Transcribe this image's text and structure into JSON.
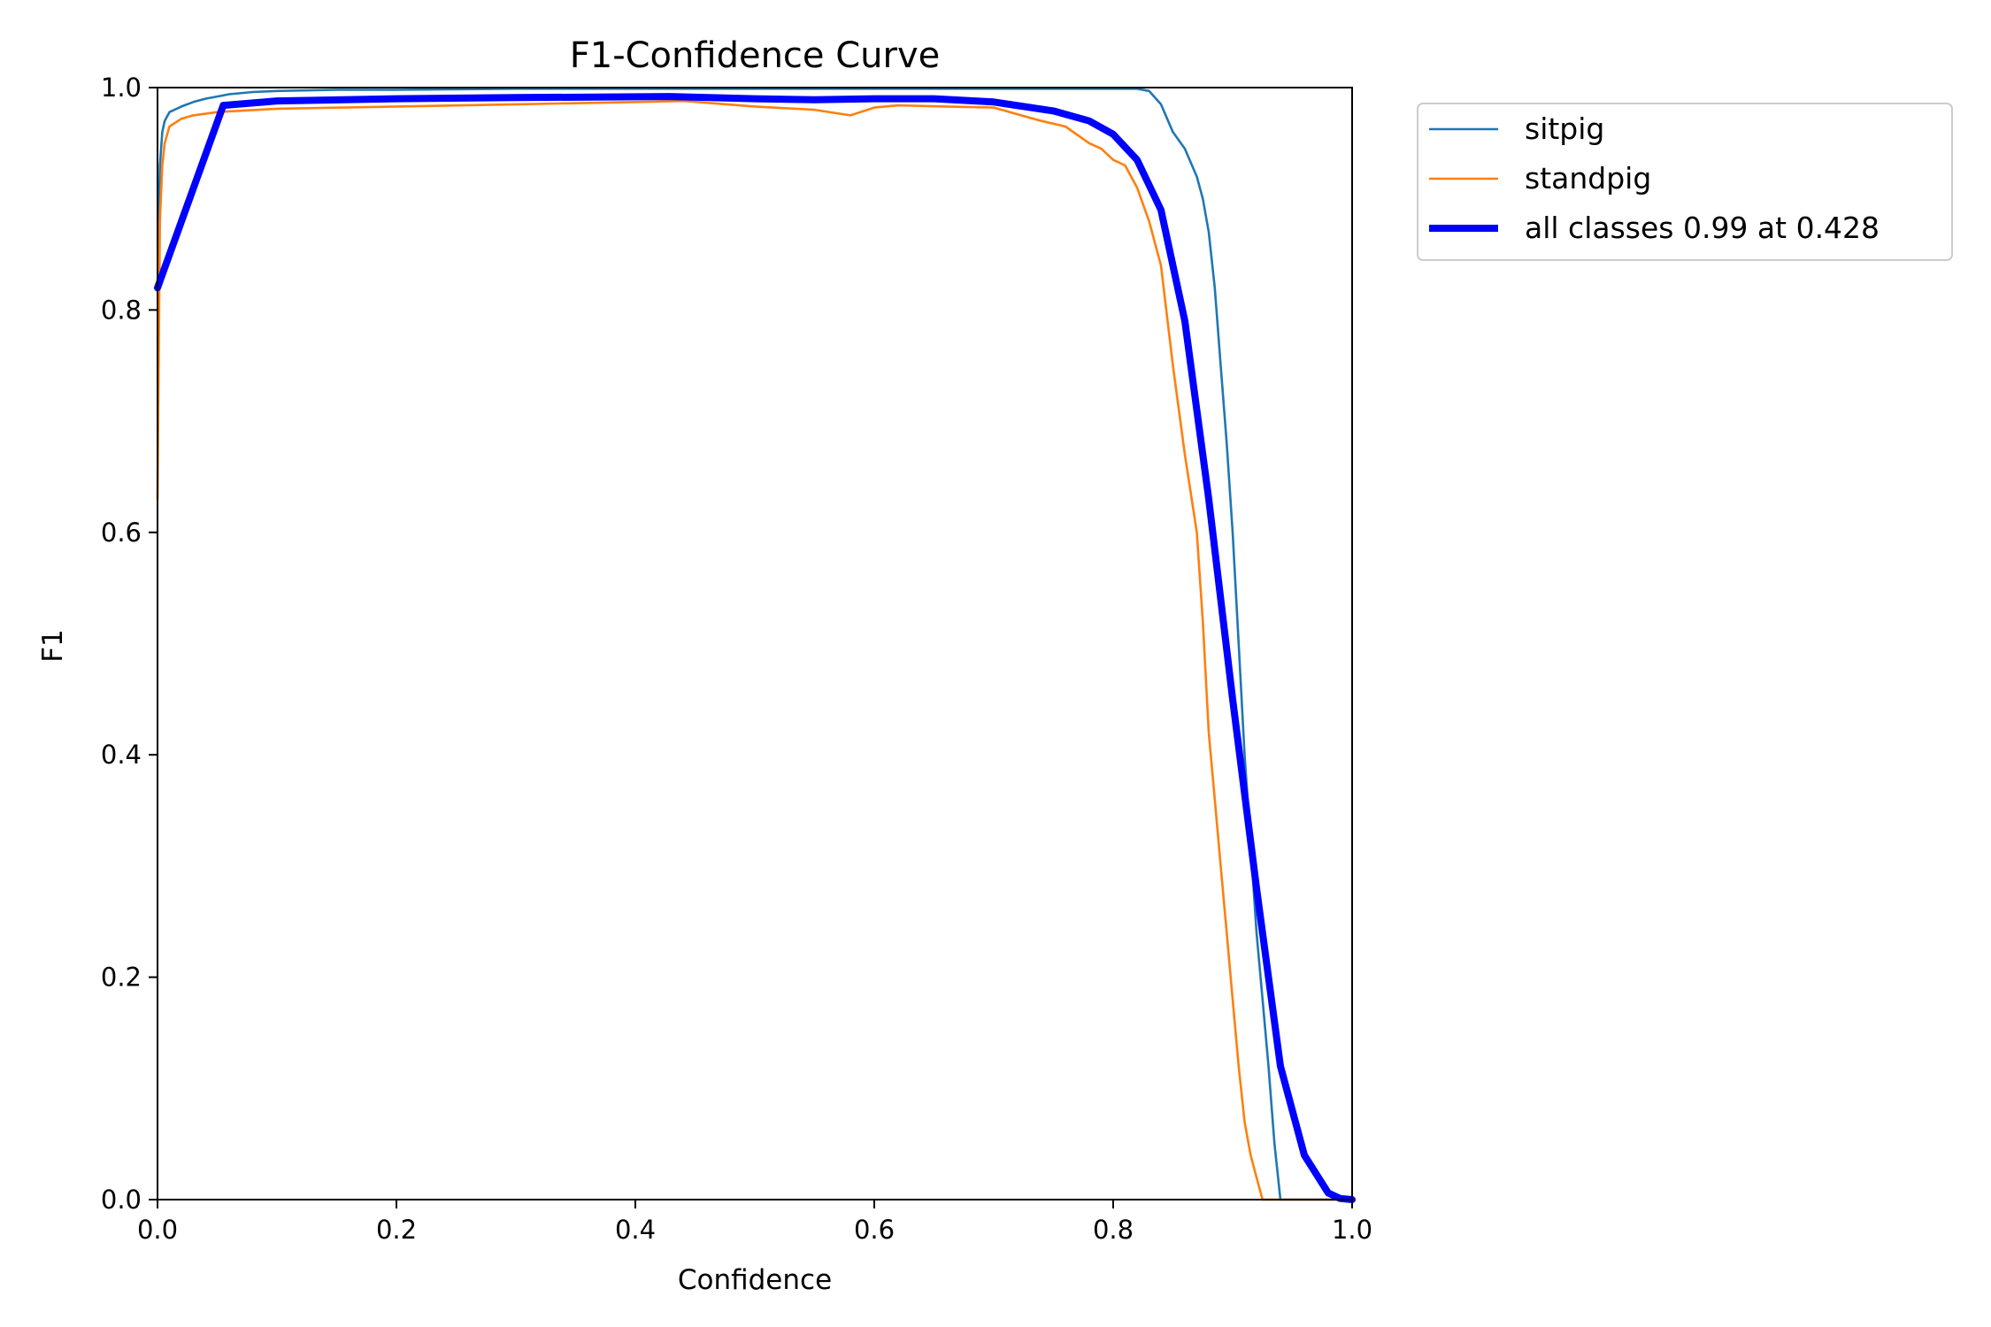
{
  "chart_data": {
    "type": "line",
    "title": "F1-Confidence Curve",
    "xlabel": "Confidence",
    "ylabel": "F1",
    "xlim": [
      0.0,
      1.0
    ],
    "ylim": [
      0.0,
      1.0
    ],
    "xticks": [
      "0.0",
      "0.2",
      "0.4",
      "0.6",
      "0.8",
      "1.0"
    ],
    "yticks": [
      "0.0",
      "0.2",
      "0.4",
      "0.6",
      "0.8",
      "1.0"
    ],
    "grid": false,
    "legend_position": "outside-top-right",
    "series": [
      {
        "name": "sitpig",
        "color": "#1f77b4",
        "width": "thin",
        "x": [
          0.0,
          0.002,
          0.004,
          0.006,
          0.01,
          0.02,
          0.03,
          0.04,
          0.05,
          0.06,
          0.08,
          0.1,
          0.15,
          0.2,
          0.3,
          0.4,
          0.5,
          0.6,
          0.7,
          0.8,
          0.82,
          0.83,
          0.84,
          0.85,
          0.86,
          0.87,
          0.875,
          0.88,
          0.885,
          0.89,
          0.895,
          0.9,
          0.905,
          0.91,
          0.915,
          0.92,
          0.925,
          0.93,
          0.935,
          0.94,
          0.95,
          1.0
        ],
        "y": [
          0.82,
          0.93,
          0.96,
          0.97,
          0.978,
          0.983,
          0.987,
          0.99,
          0.992,
          0.994,
          0.996,
          0.997,
          0.998,
          0.998,
          0.999,
          0.999,
          0.999,
          0.999,
          0.999,
          0.999,
          0.999,
          0.997,
          0.985,
          0.96,
          0.945,
          0.92,
          0.9,
          0.87,
          0.82,
          0.75,
          0.68,
          0.6,
          0.5,
          0.4,
          0.32,
          0.24,
          0.18,
          0.12,
          0.05,
          0.0,
          0.0,
          0.0
        ]
      },
      {
        "name": "standpig",
        "color": "#ff7f0e",
        "width": "thin",
        "x": [
          0.0,
          0.002,
          0.004,
          0.006,
          0.01,
          0.02,
          0.03,
          0.05,
          0.1,
          0.2,
          0.3,
          0.4,
          0.44,
          0.5,
          0.55,
          0.58,
          0.6,
          0.62,
          0.66,
          0.7,
          0.72,
          0.74,
          0.76,
          0.78,
          0.79,
          0.8,
          0.81,
          0.82,
          0.83,
          0.84,
          0.85,
          0.86,
          0.87,
          0.875,
          0.88,
          0.885,
          0.89,
          0.895,
          0.9,
          0.905,
          0.91,
          0.915,
          0.92,
          0.925,
          0.93,
          0.935,
          0.94,
          0.95,
          1.0
        ],
        "y": [
          0.63,
          0.88,
          0.93,
          0.95,
          0.965,
          0.972,
          0.975,
          0.978,
          0.981,
          0.983,
          0.985,
          0.987,
          0.988,
          0.983,
          0.98,
          0.975,
          0.982,
          0.984,
          0.983,
          0.982,
          0.976,
          0.97,
          0.965,
          0.95,
          0.945,
          0.935,
          0.93,
          0.91,
          0.88,
          0.84,
          0.75,
          0.67,
          0.6,
          0.52,
          0.42,
          0.36,
          0.3,
          0.24,
          0.18,
          0.12,
          0.07,
          0.04,
          0.02,
          0.0,
          0.0,
          0.0,
          0.0,
          0.0,
          0.0
        ]
      },
      {
        "name": "all classes 0.99 at 0.428",
        "color": "#0000ff",
        "width": "thick",
        "x": [
          0.0,
          0.055,
          0.1,
          0.2,
          0.3,
          0.428,
          0.5,
          0.55,
          0.6,
          0.65,
          0.7,
          0.75,
          0.78,
          0.8,
          0.82,
          0.84,
          0.86,
          0.88,
          0.9,
          0.92,
          0.94,
          0.96,
          0.98,
          0.99,
          1.0
        ],
        "y": [
          0.82,
          0.984,
          0.988,
          0.99,
          0.991,
          0.992,
          0.99,
          0.989,
          0.99,
          0.99,
          0.987,
          0.979,
          0.97,
          0.958,
          0.935,
          0.89,
          0.79,
          0.63,
          0.45,
          0.28,
          0.12,
          0.04,
          0.006,
          0.001,
          0.0
        ]
      }
    ]
  }
}
